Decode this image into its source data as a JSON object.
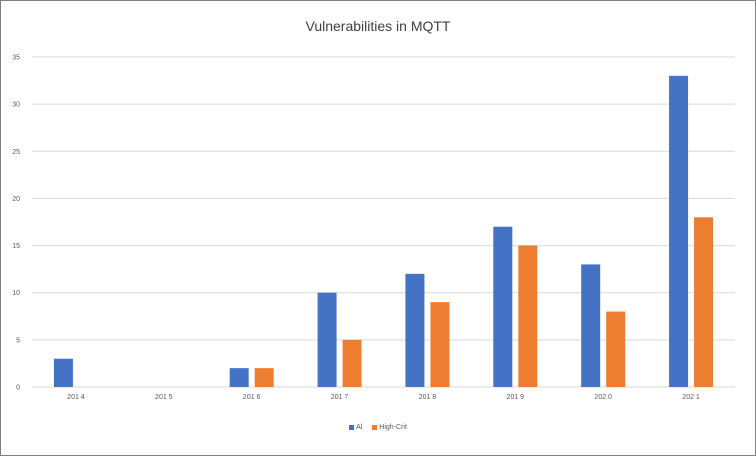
{
  "chart_data": {
    "type": "bar",
    "title": "Vulnerabilities in MQTT",
    "xlabel": "",
    "ylabel": "",
    "categories": [
      "2014",
      "2015",
      "2016",
      "2017",
      "2018",
      "2019",
      "2020",
      "2021"
    ],
    "category_labels": [
      "201 4",
      "201 5",
      "201 6",
      "201 7",
      "201 8",
      "201 9",
      "202 0",
      "202 1"
    ],
    "series": [
      {
        "name": "Al",
        "color": "#4472c4",
        "values": [
          3,
          0,
          2,
          10,
          12,
          17,
          13,
          33
        ]
      },
      {
        "name": "High-Crit",
        "color": "#ed7d31",
        "values": [
          0,
          0,
          2,
          5,
          9,
          15,
          8,
          18
        ]
      }
    ],
    "ylim": [
      0,
      35
    ],
    "yticks": [
      0,
      5,
      10,
      15,
      20,
      25,
      30,
      35
    ],
    "grid": true,
    "legend_position": "bottom"
  }
}
